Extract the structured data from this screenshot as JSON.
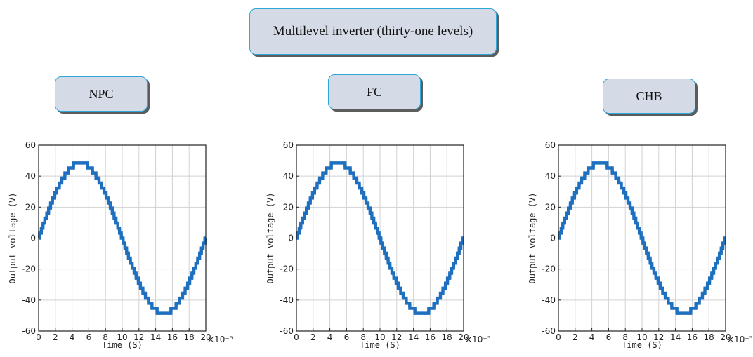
{
  "title": "Multilevel inverter (thirty-one levels)",
  "panels": [
    {
      "id": "npc",
      "label": "NPC"
    },
    {
      "id": "fc",
      "label": "FC"
    },
    {
      "id": "chb",
      "label": "CHB"
    }
  ],
  "chart_data": [
    {
      "type": "line",
      "panel": "NPC",
      "xlabel": "Time (S)",
      "ylabel": "Output  voltage  (V)",
      "x_multiplier": "×10⁻⁵",
      "xlim": [
        0,
        20
      ],
      "ylim": [
        -60,
        60
      ],
      "xticks": [
        0,
        2,
        4,
        6,
        8,
        10,
        12,
        14,
        16,
        18,
        20
      ],
      "yticks": [
        -60,
        -40,
        -20,
        0,
        20,
        40,
        60
      ],
      "grid": true,
      "series": [
        {
          "amplitude": 48.5,
          "levels": 31,
          "period": 20,
          "color": "#1f6fbf"
        }
      ]
    },
    {
      "type": "line",
      "panel": "FC",
      "xlabel": "Time (S)",
      "ylabel": "Output  voltage  (V)",
      "x_multiplier": "×10⁻⁵",
      "xlim": [
        0,
        20
      ],
      "ylim": [
        -60,
        60
      ],
      "xticks": [
        0,
        2,
        4,
        6,
        8,
        10,
        12,
        14,
        16,
        18,
        20
      ],
      "yticks": [
        -60,
        -40,
        -20,
        0,
        20,
        40,
        60
      ],
      "grid": true,
      "series": [
        {
          "amplitude": 48.5,
          "levels": 31,
          "period": 20,
          "color": "#1f6fbf"
        }
      ]
    },
    {
      "type": "line",
      "panel": "CHB",
      "xlabel": "Time (S)",
      "ylabel": "Output  voltage  (V)",
      "x_multiplier": "×10⁻⁵",
      "xlim": [
        0,
        20
      ],
      "ylim": [
        -60,
        60
      ],
      "xticks": [
        0,
        2,
        4,
        6,
        8,
        10,
        12,
        14,
        16,
        18,
        20
      ],
      "yticks": [
        -60,
        -40,
        -20,
        0,
        20,
        40,
        60
      ],
      "grid": true,
      "series": [
        {
          "amplitude": 48.5,
          "levels": 31,
          "period": 20,
          "color": "#1f6fbf"
        }
      ]
    }
  ]
}
